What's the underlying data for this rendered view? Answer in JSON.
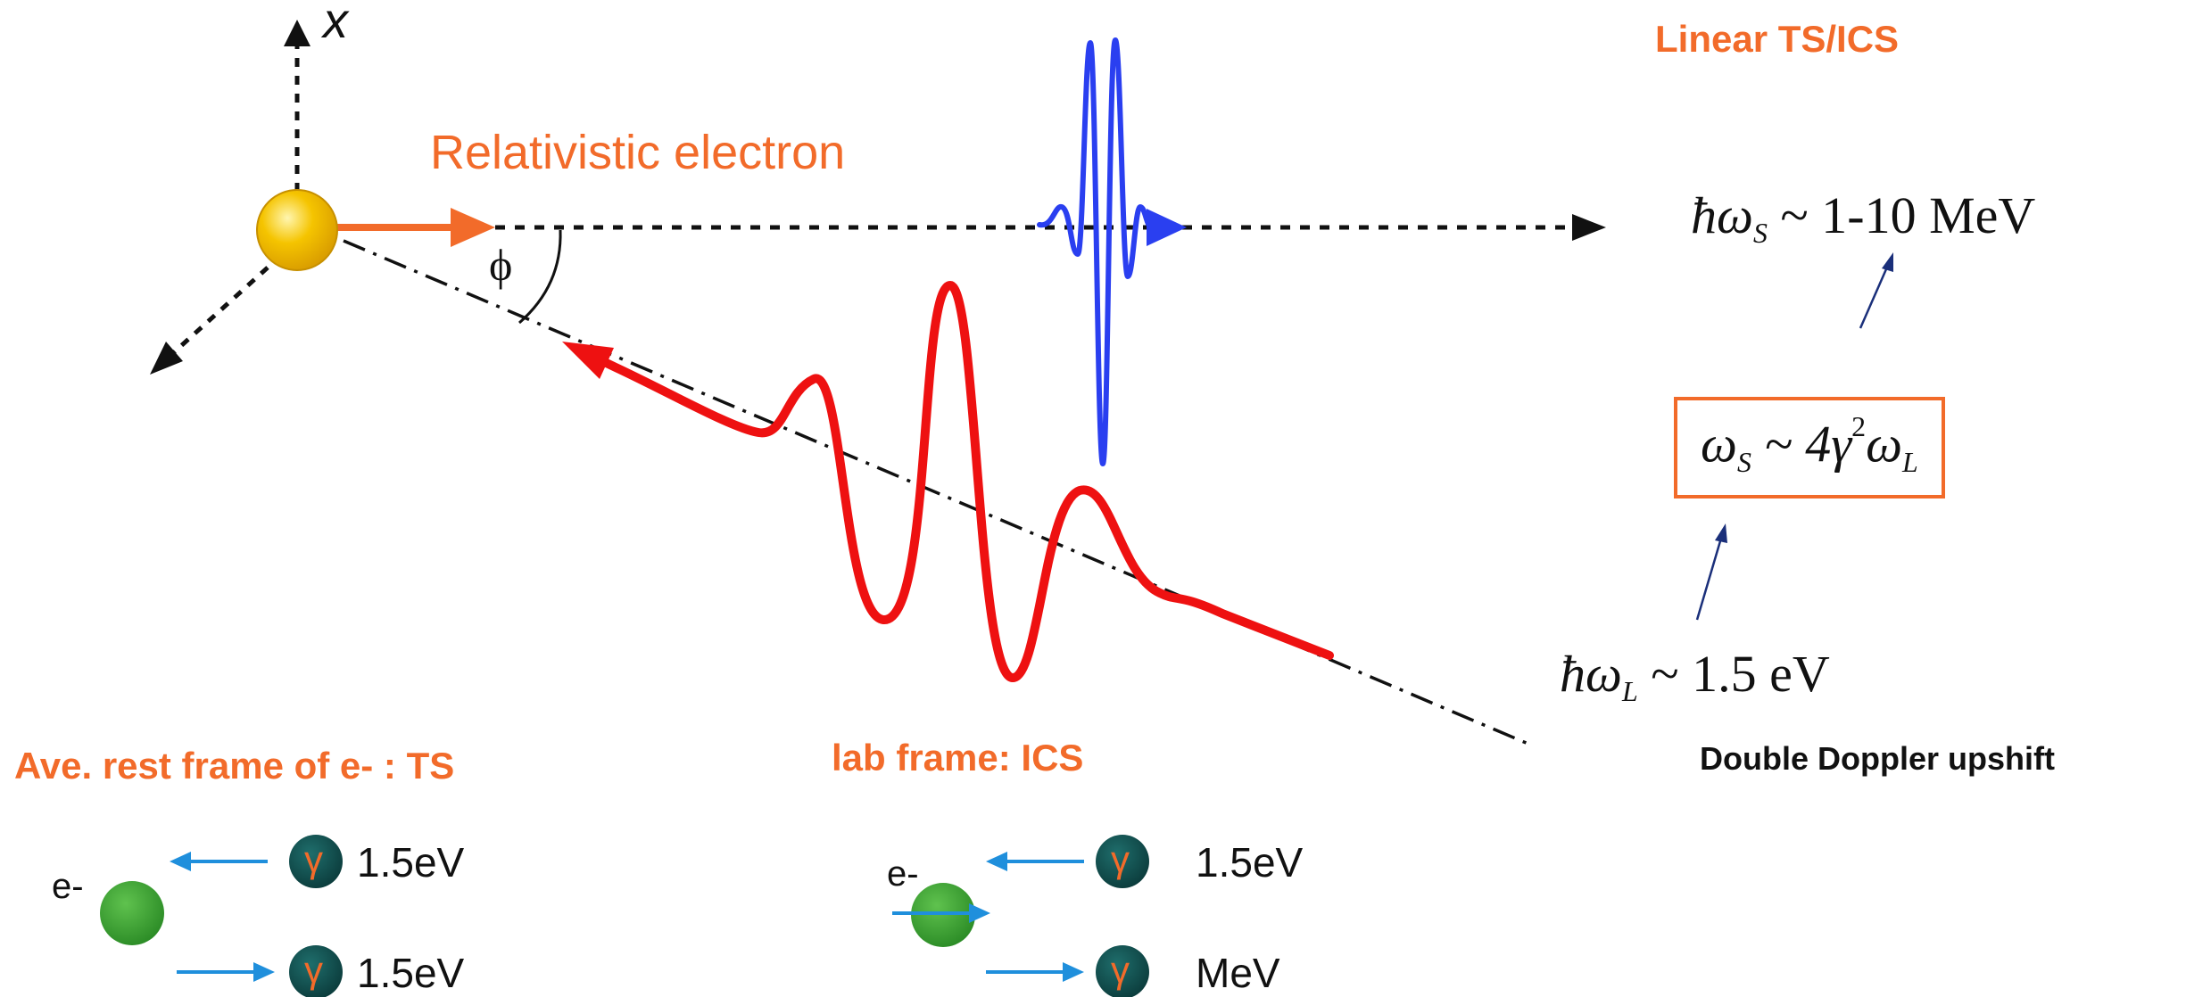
{
  "axis": {
    "x_label": "x",
    "angle_label": "ϕ"
  },
  "labels": {
    "electron": "Relativistic electron",
    "title": "Linear TS/ICS",
    "double_doppler": "Double Doppler upshift",
    "rest_frame": "Ave. rest frame of e- : TS",
    "lab_frame": "lab frame: ICS"
  },
  "formulas": {
    "scattered": {
      "hbar_omega": "ħω",
      "sub": "S",
      "rest": " ~ 1-10 MeV"
    },
    "relation": {
      "omega_s": "ω",
      "sub_s": "S",
      "mid": " ~ 4γ",
      "sup": "2",
      "omega_l": "ω",
      "sub_l": "L"
    },
    "laser": {
      "hbar_omega": "ħω",
      "sub": "L",
      "rest": " ~ 1.5 eV"
    }
  },
  "rest_frame_panel": {
    "electron_label": "e-",
    "photon_symbol": "γ",
    "incoming_energy": "1.5eV",
    "outgoing_energy": "1.5eV"
  },
  "lab_frame_panel": {
    "electron_label": "e-",
    "photon_symbol": "γ",
    "incoming_energy": "1.5eV",
    "outgoing_energy": "MeV"
  },
  "colors": {
    "accent_orange": "#f26b2a",
    "laser_red": "#ee1111",
    "gamma_blue": "#2a3ff0",
    "arrow_blue": "#1f8fdc",
    "photon_dark": "#0f4a4a",
    "electron_green": "#3fa535",
    "electron_gold": "#f5c400"
  }
}
